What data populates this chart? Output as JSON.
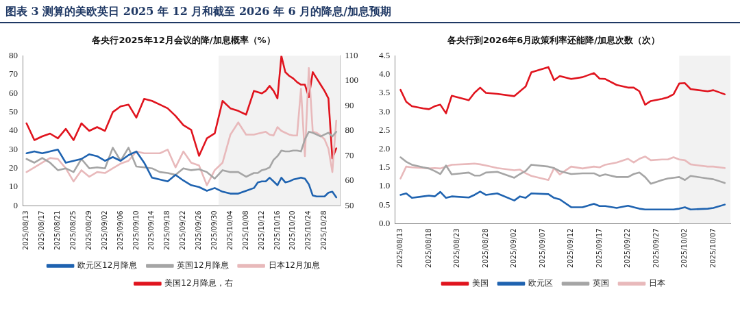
{
  "chart_data": [
    {
      "type": "line",
      "title": "各央行2025年12月会议的降/加息概率（%）",
      "annotations": [
        "图表 3 测算的美欧英日 2025 年 12 月和截至 2026 年 6 月的降息/加息预期"
      ],
      "x": [
        "2025-08-13",
        "2025-08-15",
        "2025-08-17",
        "2025-08-19",
        "2025-08-21",
        "2025-08-23",
        "2025-08-25",
        "2025-08-27",
        "2025-08-29",
        "2025-08-31",
        "2025-09-02",
        "2025-09-04",
        "2025-09-06",
        "2025-09-08",
        "2025-09-10",
        "2025-09-12",
        "2025-09-14",
        "2025-09-16",
        "2025-09-18",
        "2025-09-20",
        "2025-09-22",
        "2025-09-24",
        "2025-09-26",
        "2025-09-28",
        "2025-09-30",
        "2025-10-02",
        "2025-10-04",
        "2025-10-06",
        "2025-10-08",
        "2025-10-10",
        "2025-10-11",
        "2025-10-12",
        "2025-10-13",
        "2025-10-14",
        "2025-10-15",
        "2025-10-16",
        "2025-10-17",
        "2025-10-18",
        "2025-10-19",
        "2025-10-20",
        "2025-10-21",
        "2025-10-22",
        "2025-10-23",
        "2025-10-24",
        "2025-10-25",
        "2025-10-26",
        "2025-10-27",
        "2025-10-28",
        "2025-10-29",
        "2025-10-30",
        "2025-10-31"
      ],
      "series": [
        {
          "name": "欧元区12月降息",
          "color": "#1f63b0",
          "values": [
            28,
            29,
            28,
            29,
            30,
            23,
            24,
            25,
            27.5,
            26.5,
            24,
            26,
            24,
            27,
            29,
            23,
            15,
            14,
            13,
            16.5,
            13.5,
            11,
            10,
            8,
            9.5,
            7.5,
            6.5,
            6.5,
            8,
            9.5,
            12.5,
            13,
            13,
            15,
            13,
            11,
            15,
            12.5,
            13,
            14,
            14.5,
            15,
            14.5,
            11.5,
            5.5,
            5,
            5,
            5,
            7,
            7.5,
            4.5
          ]
        },
        {
          "name": "英国12月降息",
          "color": "#a5a5a5",
          "values": [
            25,
            23,
            25.5,
            23,
            19,
            20,
            18,
            25,
            20,
            20.5,
            20,
            31,
            24,
            31,
            21,
            20.5,
            20,
            18,
            17.5,
            16.5,
            20,
            19,
            19.5,
            18,
            14.5,
            19,
            18,
            18,
            15.5,
            17.5,
            17.5,
            19,
            19.5,
            20.5,
            24.5,
            26.5,
            29.5,
            29,
            29,
            29.5,
            29.5,
            29,
            35.5,
            39.5,
            39,
            38,
            37,
            38,
            39,
            37,
            39.5
          ]
        },
        {
          "name": "日本12月加息",
          "color": "#e8b9bb",
          "values": [
            18,
            20.5,
            23,
            25.5,
            25,
            20,
            13,
            19,
            15.5,
            18,
            17.5,
            20,
            22.5,
            24,
            29,
            28,
            28,
            28,
            30,
            20.5,
            29,
            23,
            21.5,
            11,
            19,
            23,
            38,
            44.5,
            38,
            38,
            38.5,
            39,
            39.5,
            38,
            37.5,
            42,
            40,
            39,
            38,
            37.5,
            37.5,
            62.5,
            26.5,
            73.5,
            39.5,
            39,
            37.5,
            35.5,
            30.5,
            18,
            45.5
          ]
        },
        {
          "name": "美国12月降息，右",
          "color": "#e0141e",
          "axis": "y2",
          "values": [
            83,
            76.3,
            77.8,
            78.9,
            77,
            80.8,
            76.3,
            83,
            80,
            81.5,
            80,
            87.5,
            89.8,
            90.5,
            85.3,
            92.8,
            92,
            90.5,
            89,
            86,
            82.3,
            80.4,
            70,
            77,
            79,
            92,
            89,
            88,
            86.5,
            96,
            95.5,
            95,
            96,
            98,
            96,
            93,
            110,
            103.5,
            102,
            101,
            99.5,
            98.5,
            98.5,
            93.5,
            103.5,
            101,
            98.5,
            96,
            93,
            69,
            73
          ]
        }
      ],
      "xlim": [
        "2025-08-12",
        "2025-11-01"
      ],
      "xticks": [
        {
          "value": "2025-08-13",
          "label": "2025/08/13"
        },
        {
          "value": "2025-08-17",
          "label": "2025/08/17"
        },
        {
          "value": "2025-08-21",
          "label": "2025/08/21"
        },
        {
          "value": "2025-08-25",
          "label": "2025/08/25"
        },
        {
          "value": "2025-08-29",
          "label": "2025/08/29"
        },
        {
          "value": "2025-09-02",
          "label": "2025/09/02"
        },
        {
          "value": "2025-09-06",
          "label": "2025/09/06"
        },
        {
          "value": "2025-09-10",
          "label": "2025/09/10"
        },
        {
          "value": "2025-09-14",
          "label": "2025/09/14"
        },
        {
          "value": "2025-09-18",
          "label": "2025/09/18"
        },
        {
          "value": "2025-09-22",
          "label": "2025/09/22"
        },
        {
          "value": "2025-09-26",
          "label": "2025/09/26"
        },
        {
          "value": "2025-09-30",
          "label": "2025/09/30"
        },
        {
          "value": "2025-10-04",
          "label": "2025/10/04"
        },
        {
          "value": "2025-10-08",
          "label": "2025/10/08"
        },
        {
          "value": "2025-10-12",
          "label": "2025/10/12"
        },
        {
          "value": "2025-10-16",
          "label": "2025/10/16"
        },
        {
          "value": "2025-10-20",
          "label": "2025/10/20"
        },
        {
          "value": "2025-10-24",
          "label": "2025/10/24"
        },
        {
          "value": "2025-10-28",
          "label": "2025/10/28"
        }
      ],
      "ylim": [
        0,
        80
      ],
      "yticks": [
        0,
        10,
        20,
        30,
        40,
        50,
        60,
        70,
        80
      ],
      "y2lim": [
        50,
        110
      ],
      "y2ticks": [
        50,
        60,
        70,
        80,
        90,
        100,
        110
      ],
      "bands": [
        {
          "axis": "x",
          "from": "2025-10-01",
          "to": "2025-11-01",
          "color": "#f2f2f2"
        }
      ],
      "grid": false,
      "legend": "bottom",
      "marker": "none",
      "line_style": "solid"
    },
    {
      "type": "line",
      "title": "各央行到2026年6月政策利率还能降/加息次数（次）",
      "x": [
        "2025-08-13",
        "2025-08-14",
        "2025-08-15",
        "2025-08-17",
        "2025-08-18",
        "2025-08-19",
        "2025-08-20",
        "2025-08-21",
        "2025-08-22",
        "2025-08-25",
        "2025-08-26",
        "2025-08-27",
        "2025-08-28",
        "2025-08-30",
        "2025-09-02",
        "2025-09-03",
        "2025-09-04",
        "2025-09-05",
        "2025-09-08",
        "2025-09-09",
        "2025-09-10",
        "2025-09-12",
        "2025-09-14",
        "2025-09-16",
        "2025-09-17",
        "2025-09-18",
        "2025-09-20",
        "2025-09-22",
        "2025-09-23",
        "2025-09-24",
        "2025-09-25",
        "2025-09-26",
        "2025-09-28",
        "2025-09-29",
        "2025-09-30",
        "2025-10-01",
        "2025-10-02",
        "2025-10-03",
        "2025-10-06",
        "2025-10-07",
        "2025-10-09"
      ],
      "series": [
        {
          "name": "美国",
          "color": "#e0141e",
          "values": [
            3.59,
            3.27,
            3.15,
            3.09,
            3.07,
            3.15,
            3.19,
            2.96,
            3.43,
            3.31,
            3.51,
            3.65,
            3.51,
            3.48,
            3.42,
            3.55,
            3.68,
            4.06,
            4.2,
            3.85,
            3.96,
            3.88,
            3.93,
            4.04,
            3.89,
            3.88,
            3.72,
            3.65,
            3.65,
            3.55,
            3.19,
            3.29,
            3.35,
            3.39,
            3.47,
            3.76,
            3.77,
            3.61,
            3.55,
            3.58,
            3.47
          ]
        },
        {
          "name": "欧元区",
          "color": "#1f63b0",
          "values": [
            0.77,
            0.81,
            0.69,
            0.73,
            0.75,
            0.73,
            0.85,
            0.69,
            0.73,
            0.7,
            0.77,
            0.86,
            0.77,
            0.81,
            0.62,
            0.73,
            0.69,
            0.81,
            0.79,
            0.69,
            0.65,
            0.44,
            0.44,
            0.53,
            0.47,
            0.47,
            0.42,
            0.48,
            0.44,
            0.4,
            0.38,
            0.38,
            0.38,
            0.38,
            0.38,
            0.4,
            0.44,
            0.38,
            0.4,
            0.42,
            0.51
          ]
        },
        {
          "name": "英国",
          "color": "#a5a5a5",
          "values": [
            1.78,
            1.66,
            1.58,
            1.51,
            1.48,
            1.41,
            1.33,
            1.56,
            1.32,
            1.37,
            1.29,
            1.29,
            1.37,
            1.39,
            1.23,
            1.33,
            1.41,
            1.58,
            1.53,
            1.49,
            1.41,
            1.33,
            1.35,
            1.35,
            1.28,
            1.32,
            1.25,
            1.25,
            1.33,
            1.37,
            1.25,
            1.07,
            1.17,
            1.21,
            1.23,
            1.25,
            1.17,
            1.28,
            1.21,
            1.19,
            1.09
          ]
        },
        {
          "name": "日本",
          "color": "#e8b9bb",
          "values": [
            1.21,
            1.53,
            1.51,
            1.49,
            1.48,
            1.49,
            1.48,
            1.53,
            1.58,
            1.6,
            1.61,
            1.59,
            1.56,
            1.49,
            1.43,
            1.45,
            1.35,
            1.28,
            1.17,
            1.49,
            1.32,
            1.53,
            1.48,
            1.53,
            1.51,
            1.58,
            1.64,
            1.74,
            1.64,
            1.74,
            1.8,
            1.7,
            1.72,
            1.72,
            1.78,
            1.72,
            1.7,
            1.59,
            1.53,
            1.53,
            1.49
          ]
        }
      ],
      "xlim": [
        "2025-08-12",
        "2025-10-10"
      ],
      "xticks": [
        {
          "value": "2025-08-13",
          "label": "2025/08/13"
        },
        {
          "value": "2025-08-18",
          "label": "2025/08/18"
        },
        {
          "value": "2025-08-23",
          "label": "2025/08/23"
        },
        {
          "value": "2025-08-28",
          "label": "2025/08/28"
        },
        {
          "value": "2025-09-02",
          "label": "2025/09/02"
        },
        {
          "value": "2025-09-07",
          "label": "2025/09/07"
        },
        {
          "value": "2025-09-12",
          "label": "2025/09/12"
        },
        {
          "value": "2025-09-17",
          "label": "2025/09/17"
        },
        {
          "value": "2025-09-22",
          "label": "2025/09/22"
        },
        {
          "value": "2025-09-27",
          "label": "2025/09/27"
        },
        {
          "value": "2025-10-02",
          "label": "2025/10/02"
        },
        {
          "value": "2025-10-07",
          "label": "2025/10/07"
        }
      ],
      "ylim": [
        0,
        4.5
      ],
      "yticks": [
        {
          "value": 0,
          "label": "0.0"
        },
        {
          "value": 0.5,
          "label": "0.5"
        },
        {
          "value": 1,
          "label": "1.0"
        },
        {
          "value": 1.5,
          "label": "1.5"
        },
        {
          "value": 2,
          "label": "2.0"
        },
        {
          "value": 2.5,
          "label": "2.5"
        },
        {
          "value": 3,
          "label": "3.0"
        },
        {
          "value": 3.5,
          "label": "3.5"
        },
        {
          "value": 4,
          "label": "4.0"
        },
        {
          "value": 4.5,
          "label": "4.5"
        }
      ],
      "bands": [
        {
          "axis": "x",
          "from": "2025-10-01",
          "to": "2025-10-10",
          "color": "#f2f2f2"
        }
      ],
      "grid": false,
      "legend": "bottom",
      "marker": "none",
      "line_style": "solid"
    }
  ]
}
